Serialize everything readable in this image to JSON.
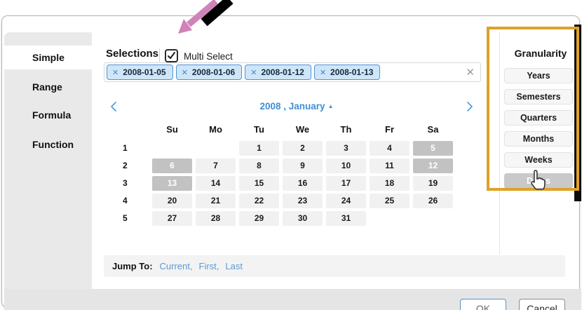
{
  "sidebar": {
    "items": [
      {
        "id": "simple",
        "label": "Simple",
        "selected": true
      },
      {
        "id": "range",
        "label": "Range",
        "selected": false
      },
      {
        "id": "formula",
        "label": "Formula",
        "selected": false
      },
      {
        "id": "function",
        "label": "Function",
        "selected": false
      }
    ]
  },
  "selections": {
    "label": "Selections",
    "multi_select": {
      "label": "Multi Select",
      "checked": true
    },
    "chips": [
      "2008-01-05",
      "2008-01-06",
      "2008-01-12",
      "2008-01-13"
    ]
  },
  "calendar": {
    "title": "2008 , January",
    "day_headers": [
      "Su",
      "Mo",
      "Tu",
      "We",
      "Th",
      "Fr",
      "Sa"
    ],
    "weeks": [
      {
        "num": "1",
        "days": [
          "",
          "",
          "1",
          "2",
          "3",
          "4",
          "5"
        ]
      },
      {
        "num": "2",
        "days": [
          "6",
          "7",
          "8",
          "9",
          "10",
          "11",
          "12"
        ]
      },
      {
        "num": "3",
        "days": [
          "13",
          "14",
          "15",
          "16",
          "17",
          "18",
          "19"
        ]
      },
      {
        "num": "4",
        "days": [
          "20",
          "21",
          "22",
          "23",
          "24",
          "25",
          "26"
        ]
      },
      {
        "num": "5",
        "days": [
          "27",
          "28",
          "29",
          "30",
          "31",
          "",
          ""
        ]
      }
    ],
    "selected_days": [
      "5",
      "6",
      "12",
      "13"
    ]
  },
  "jump_to": {
    "label": "Jump To:",
    "links": [
      "Current",
      "First",
      "Last"
    ]
  },
  "granularity": {
    "title": "Granularity",
    "options": [
      {
        "label": "Years",
        "selected": false
      },
      {
        "label": "Semesters",
        "selected": false
      },
      {
        "label": "Quarters",
        "selected": false
      },
      {
        "label": "Months",
        "selected": false
      },
      {
        "label": "Weeks",
        "selected": false
      },
      {
        "label": "Dates",
        "selected": true
      }
    ]
  },
  "footer": {
    "ok_label": "OK",
    "cancel_label": "Cancel"
  },
  "colors": {
    "accent_blue": "#3f8fd6",
    "chip_bg": "#cfe6f8",
    "chip_border": "#4f93d5",
    "selected_gray": "#c2c2c2",
    "annotation_orange": "#dfa126",
    "annotation_pink": "#d083b8"
  }
}
